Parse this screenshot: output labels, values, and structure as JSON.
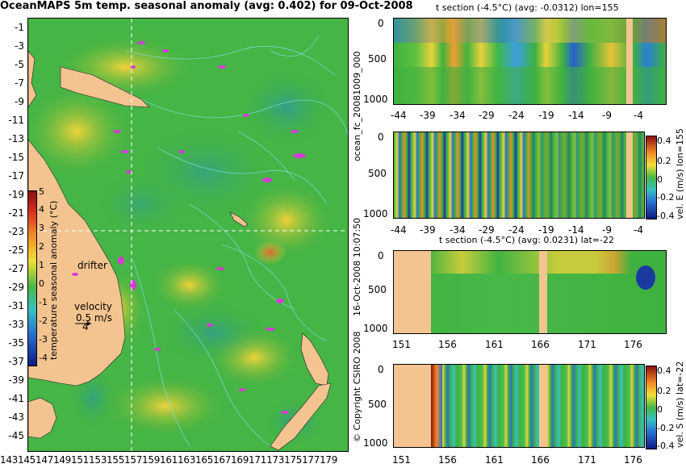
{
  "map": {
    "title": "OceanMAPS 5m temp. seasonal anomaly (avg: 0.402) for 09-Oct-2008",
    "lat_ticks": [
      "-1",
      "-3",
      "-5",
      "-7",
      "-9",
      "-11",
      "-13",
      "-15",
      "-17",
      "-19",
      "-21",
      "-23",
      "-25",
      "-27",
      "-29",
      "-31",
      "-33",
      "-35",
      "-37",
      "-39",
      "-41",
      "-43",
      "-45"
    ],
    "lon_ticks": "143145147149151153155157159161163165167169171173175177179",
    "colorbar_ticks": [
      "5",
      "4",
      "3",
      "2",
      "1",
      "0",
      "-1",
      "-2",
      "-3",
      "-4"
    ],
    "colorbar_label": "temperature seasonal anomaly (°C)",
    "drifter_label": "drifter",
    "velocity_label": "velocity",
    "velocity_scale": "0.5 m/s",
    "velocity_number": "4",
    "colors": {
      "land": "#f4c490",
      "ocean": "#3fb13f",
      "warm": "#e8d23a",
      "cold": "#2a7fd4",
      "drifter": "#d63ad6"
    }
  },
  "side_labels": {
    "forecast": "ocean_fc_20081009_000",
    "date_run": "16-Oct-2008 10:07:50",
    "copyright": "© Copyright CSIRO 2008"
  },
  "sections": [
    {
      "title": "t section (-4.5°C) (avg: -0.0312) lon=155",
      "x_ticks": [
        "-44",
        "-39",
        "-34",
        "-29",
        "-24",
        "-19",
        "-14",
        "-9",
        "-4"
      ],
      "y_ticks": [
        "0",
        "500",
        "1000"
      ]
    },
    {
      "title": "",
      "x_ticks": [
        "-44",
        "-39",
        "-34",
        "-29",
        "-24",
        "-19",
        "-14",
        "-9",
        "-4"
      ],
      "y_ticks": [
        "0",
        "500",
        "1000"
      ],
      "cb_label": "vel. E (m/s) lon=155",
      "cb_ticks": [
        "0.4",
        "0.2",
        "0",
        "-0.2",
        "-0.4"
      ]
    },
    {
      "title": "t section (-4.5°C) (avg: 0.0231) lat=-22",
      "x_ticks": [
        "151",
        "156",
        "161",
        "166",
        "171",
        "176"
      ],
      "y_ticks": [
        "0",
        "500",
        "1000"
      ]
    },
    {
      "title": "",
      "x_ticks": [
        "151",
        "156",
        "161",
        "166",
        "171",
        "176"
      ],
      "y_ticks": [
        "0",
        "500",
        "1000"
      ],
      "cb_label": "vel. S (m/s) lat=-22",
      "cb_ticks": [
        "0.4",
        "0.2",
        "0",
        "-0.2",
        "-0.4"
      ]
    }
  ]
}
